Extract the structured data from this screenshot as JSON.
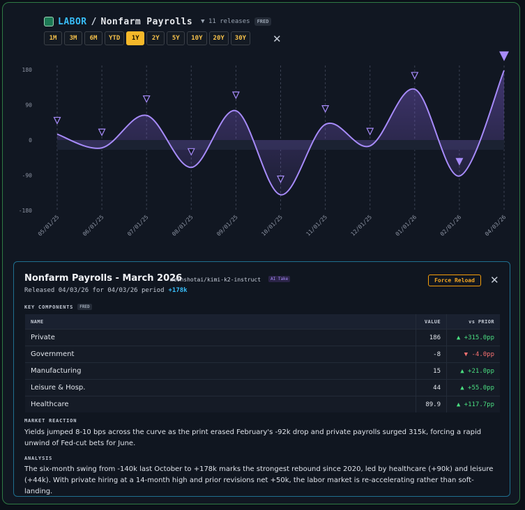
{
  "header": {
    "category": "LABOR",
    "separator": "/",
    "title": "Nonfarm Payrolls",
    "releases": "▼ 11 releases",
    "source": "FRED"
  },
  "ranges": [
    {
      "label": "1M",
      "active": false
    },
    {
      "label": "3M",
      "active": false
    },
    {
      "label": "6M",
      "active": false
    },
    {
      "label": "YTD",
      "active": false
    },
    {
      "label": "1Y",
      "active": true
    },
    {
      "label": "2Y",
      "active": false
    },
    {
      "label": "5Y",
      "active": false
    },
    {
      "label": "10Y",
      "active": false
    },
    {
      "label": "20Y",
      "active": false
    },
    {
      "label": "30Y",
      "active": false
    }
  ],
  "close_glyph": "✕",
  "chart_data": {
    "type": "line",
    "title": "Nonfarm Payrolls",
    "xlabel": "",
    "ylabel": "",
    "ylim": [
      -180,
      180
    ],
    "yticks": [
      180,
      90,
      0,
      -90,
      -180
    ],
    "ytick_labels": [
      "180",
      "90",
      "0",
      "-90",
      "-180"
    ],
    "categories": [
      "05/01/25",
      "06/01/25",
      "07/01/25",
      "08/01/25",
      "09/01/25",
      "10/01/25",
      "11/01/25",
      "12/01/25",
      "01/01/26",
      "02/01/26",
      "04/03/26"
    ],
    "series": [
      {
        "name": "Nonfarm Payrolls",
        "values": [
          15,
          -20,
          63,
          -70,
          75,
          -140,
          40,
          -15,
          130,
          -92,
          178
        ]
      }
    ],
    "markers": [
      50,
      20,
      105,
      -30,
      115,
      -100,
      80,
      22,
      165,
      -55,
      215
    ],
    "marker_filled": [
      false,
      false,
      false,
      false,
      false,
      false,
      false,
      false,
      false,
      true,
      true
    ],
    "colors": {
      "line": "#a78bfa",
      "marker": "#a78bfa",
      "grid": "#3a4152",
      "axis": "#8c93a2"
    }
  },
  "detail": {
    "title": "Nonfarm Payrolls - March 2026",
    "model": "moonshotai/kimi-k2-instruct",
    "ai_badge": "AI Take",
    "released": "Released 04/03/26 for 04/03/26 period",
    "headline": "+178k",
    "force_reload": "Force Reload",
    "key_components_label": "KEY COMPONENTS",
    "key_components_source": "FRED",
    "table": {
      "headers": [
        "NAME",
        "VALUE",
        "vs PRIOR"
      ],
      "rows": [
        {
          "name": "Private",
          "value": "186",
          "change": "▲ +315.0pp",
          "dir": "up"
        },
        {
          "name": "Government",
          "value": "-8",
          "change": "▼ -4.0pp",
          "dir": "down"
        },
        {
          "name": "Manufacturing",
          "value": "15",
          "change": "▲ +21.0pp",
          "dir": "up"
        },
        {
          "name": "Leisure & Hosp.",
          "value": "44",
          "change": "▲ +55.0pp",
          "dir": "up"
        },
        {
          "name": "Healthcare",
          "value": "89.9",
          "change": "▲ +117.7pp",
          "dir": "up"
        }
      ]
    },
    "market_reaction_label": "MARKET REACTION",
    "market_reaction": "Yields jumped 8-10 bps across the curve as the print erased February's -92k drop and private payrolls surged 315k, forcing a rapid unwind of Fed-cut bets for June.",
    "analysis_label": "ANALYSIS",
    "analysis": "The six-month swing from -140k last October to +178k marks the strongest rebound since 2020, led by healthcare (+90k) and leisure (+44k). With private hiring at a 14-month high and prior revisions net +50k, the labor market is re-accelerating rather than soft-landing."
  }
}
